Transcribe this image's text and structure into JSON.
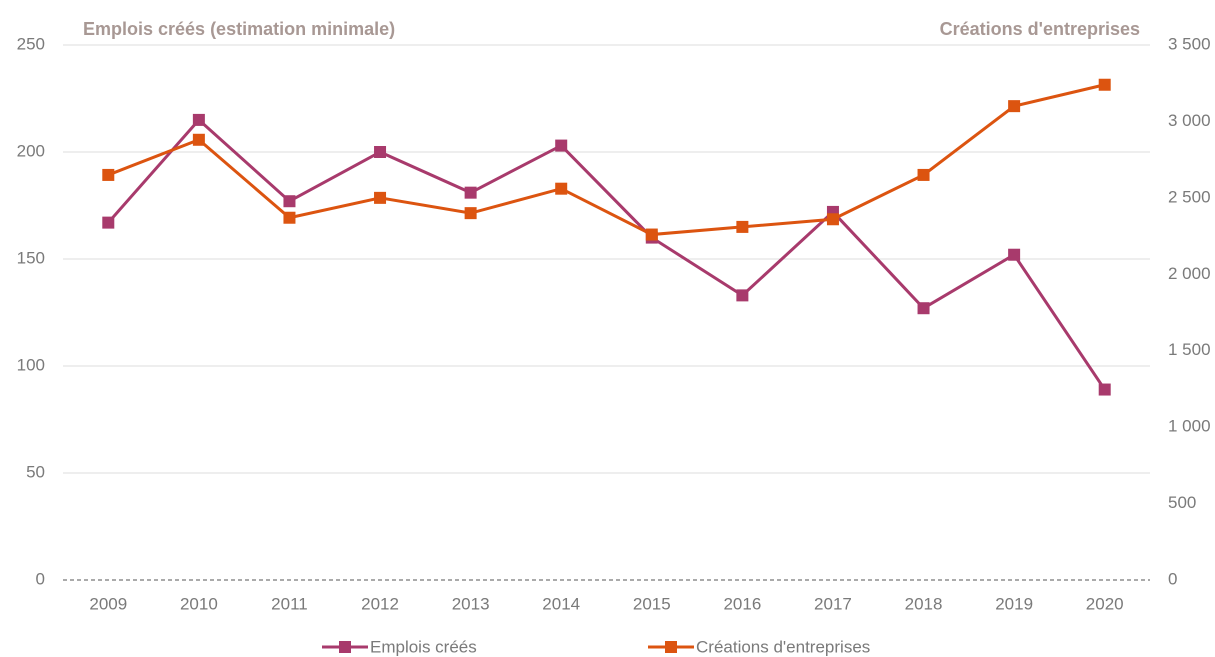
{
  "chart_data": {
    "type": "line",
    "title_left": "Emplois créés (estimation minimale)",
    "title_right": "Créations d'entreprises",
    "categories": [
      "2009",
      "2010",
      "2011",
      "2012",
      "2013",
      "2014",
      "2015",
      "2016",
      "2017",
      "2018",
      "2019",
      "2020"
    ],
    "series": [
      {
        "name": "Emplois créés",
        "color": "#a83a6c",
        "values": [
          167,
          215,
          177,
          200,
          181,
          203,
          160,
          133,
          172,
          127,
          152,
          89
        ]
      },
      {
        "name": "Créations d'entreprises",
        "color": "#dc5410",
        "axis": "y2",
        "values": [
          2650,
          2880,
          2370,
          2500,
          2400,
          2560,
          2260,
          2310,
          2360,
          2650,
          3100,
          3240
        ]
      }
    ],
    "ylim": [
      0,
      250
    ],
    "yticks": [
      0,
      50,
      100,
      150,
      200,
      250
    ],
    "y2lim": [
      0,
      3500
    ],
    "y2ticks": [
      0,
      500,
      {
        "value": 1000,
        "label": "1 000"
      },
      {
        "value": 1500,
        "label": "1 500"
      },
      {
        "value": 2000,
        "label": "2 000"
      },
      {
        "value": 2500,
        "label": "2 500"
      },
      {
        "value": 3000,
        "label": "3 000"
      },
      {
        "value": 3500,
        "label": "3 500"
      }
    ],
    "grid": true,
    "legend": "bottom"
  }
}
